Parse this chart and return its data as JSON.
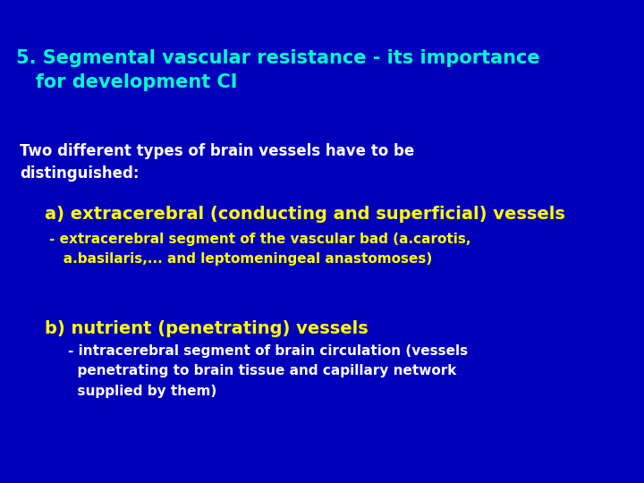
{
  "background_color": "#0000BB",
  "title_line1": "5. Segmental vascular resistance - its importance",
  "title_line2": "   for development CI",
  "title_color": "#00FFCC",
  "body_line1": "Two different types of brain vessels have to be",
  "body_line2": "distinguished:",
  "body_color": "#FFFFFF",
  "section_a_label": "a) extracerebral (conducting and superficial) vessels",
  "section_a_color": "#FFFF00",
  "section_a_sub1": "- extracerebral segment of the vascular bad (a.carotis,",
  "section_a_sub2": "   a.basilaris,... and leptomeningeal anastomoses)",
  "section_a_sub_color": "#FFFF00",
  "section_b_label": "b) nutrient (penetrating) vessels",
  "section_b_color": "#FFFF00",
  "section_b_sub1": "    - intracerebral segment of brain circulation (vessels",
  "section_b_sub2": "      penetrating to brain tissue and capillary network",
  "section_b_sub3": "      supplied by them)",
  "section_b_sub_color": "#FFFFFF",
  "title_fontsize": 15,
  "body_fontsize": 12,
  "section_label_fontsize": 14,
  "section_sub_fontsize": 11
}
